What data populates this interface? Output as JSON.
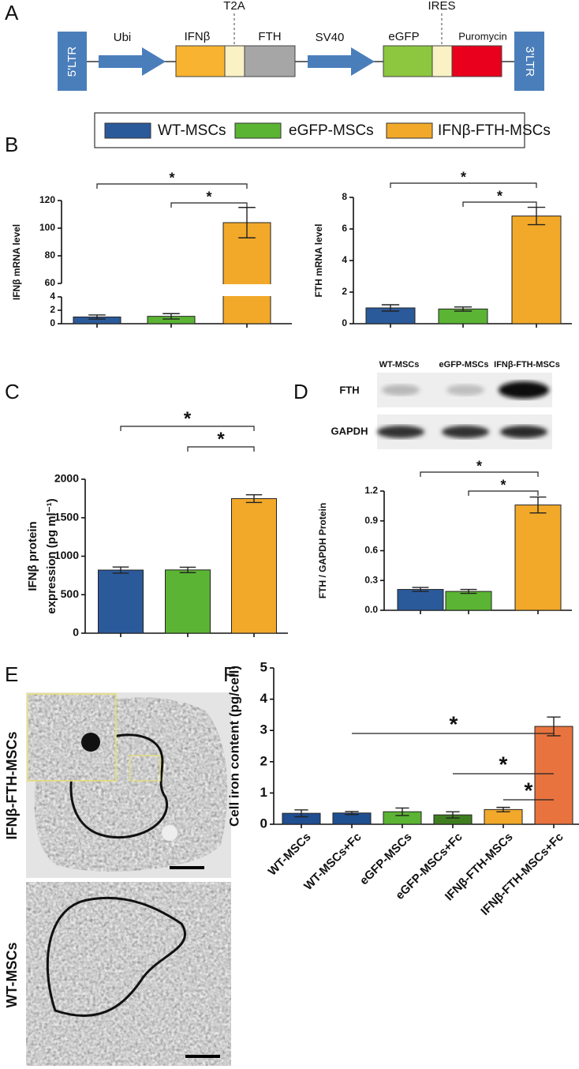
{
  "panel_labels": [
    "A",
    "B",
    "C",
    "D",
    "E",
    "F"
  ],
  "construct": {
    "labels": [
      "5'LTR",
      "Ubi",
      "IFNβ",
      "T2A",
      "FTH",
      "SV40",
      "eGFP",
      "IRES",
      "Puromycin",
      "3'LTR"
    ]
  },
  "legend": {
    "items": [
      {
        "name": "WT-MSCs",
        "color": "#2b5a9b"
      },
      {
        "name": "eGFP-MSCs",
        "color": "#5bb433"
      },
      {
        "name": "IFNβ-FTH-MSCs",
        "color": "#f2a92a"
      }
    ]
  },
  "blot": {
    "columns": [
      "WT-MSCs",
      "eGFP-MSCs",
      "IFNβ-FTH-MSCs"
    ],
    "rows": [
      "FTH",
      "GAPDH"
    ]
  },
  "micrographs": {
    "labels": [
      "IFNβ-FTH-MSCs",
      "WT-MSCs"
    ]
  },
  "chart_data": [
    {
      "type": "bar",
      "y_label": "IFNβ mRNA level",
      "categories": [
        null,
        null,
        null
      ],
      "values": [
        1,
        1.1,
        104
      ],
      "errors": [
        0.3,
        0.4,
        11
      ],
      "colors": [
        "#2b5a9b",
        "#5bb433",
        "#f2a92a"
      ],
      "ylim": [
        0,
        120
      ],
      "break": [
        4,
        60
      ],
      "yticks": [
        0,
        2,
        4,
        60,
        80,
        100,
        120
      ],
      "annotations": [
        {
          "from": 0,
          "to": 2,
          "label": "*"
        },
        {
          "from": 1,
          "to": 2,
          "label": "*"
        }
      ]
    },
    {
      "type": "bar",
      "y_label": "FTH mRNA level",
      "categories": [
        null,
        null,
        null
      ],
      "values": [
        1,
        0.93,
        6.82
      ],
      "errors": [
        0.2,
        0.13,
        0.55
      ],
      "colors": [
        "#2b5a9b",
        "#5bb433",
        "#f2a92a"
      ],
      "ylim": [
        0,
        8
      ],
      "yticks": [
        0,
        2,
        4,
        6,
        8
      ],
      "annotations": [
        {
          "from": 0,
          "to": 2,
          "label": "*"
        },
        {
          "from": 1,
          "to": 2,
          "label": "*"
        }
      ]
    },
    {
      "type": "bar",
      "y_label": [
        "IFNβ protein",
        "expression (pg ml⁻¹)"
      ],
      "categories": [
        null,
        null,
        null
      ],
      "values": [
        820,
        822,
        1748
      ],
      "errors": [
        40,
        35,
        50
      ],
      "colors": [
        "#2b5a9b",
        "#5bb433",
        "#f2a92a"
      ],
      "ylim": [
        0,
        2000
      ],
      "yticks": [
        0,
        500,
        1000,
        1500,
        2000
      ],
      "annotations": [
        {
          "from": 0,
          "to": 2,
          "label": "*"
        },
        {
          "from": 1,
          "to": 2,
          "label": "*"
        }
      ]
    },
    {
      "type": "bar",
      "y_label": "FTH / GAPDH Protein",
      "categories": [
        null,
        null,
        null
      ],
      "values": [
        0.21,
        0.19,
        1.06
      ],
      "errors": [
        0.02,
        0.02,
        0.08
      ],
      "colors": [
        "#2b5a9b",
        "#5bb433",
        "#f2a92a"
      ],
      "ylim": [
        0,
        1.2
      ],
      "yticks": [
        {
          "value": 0,
          "label": "0.0"
        },
        0.3,
        0.6,
        0.9,
        1.2
      ],
      "annotations": [
        {
          "from": 0,
          "to": 2,
          "label": "*"
        },
        {
          "from": 1,
          "to": 2,
          "label": "*"
        }
      ]
    },
    {
      "type": "bar",
      "y_label": "Cell iron content (pg/cell)",
      "categories": [
        "WT-MSCs",
        "WT-MSCs+Fc",
        "eGFP-MSCs",
        "eGFP-MSCs+Fc",
        "IFNβ-FTH-MSCs",
        "IFNβ-FTH-MSCs+Fc"
      ],
      "values": [
        0.35,
        0.36,
        0.4,
        0.3,
        0.47,
        3.13
      ],
      "errors": [
        0.11,
        0.05,
        0.12,
        0.1,
        0.07,
        0.3
      ],
      "colors": [
        "#1f4e91",
        "#1f4e91",
        "#5bb433",
        "#3f7e1f",
        "#f2a92a",
        "#e8733f"
      ],
      "ylim": [
        0,
        5
      ],
      "yticks": [
        0,
        1,
        2,
        3,
        4,
        5
      ],
      "annotations": [
        {
          "from": 1,
          "to": 5,
          "label": "*"
        },
        {
          "from": 3,
          "to": 5,
          "label": "*"
        },
        {
          "from": 4,
          "to": 5,
          "label": "*"
        }
      ]
    }
  ]
}
